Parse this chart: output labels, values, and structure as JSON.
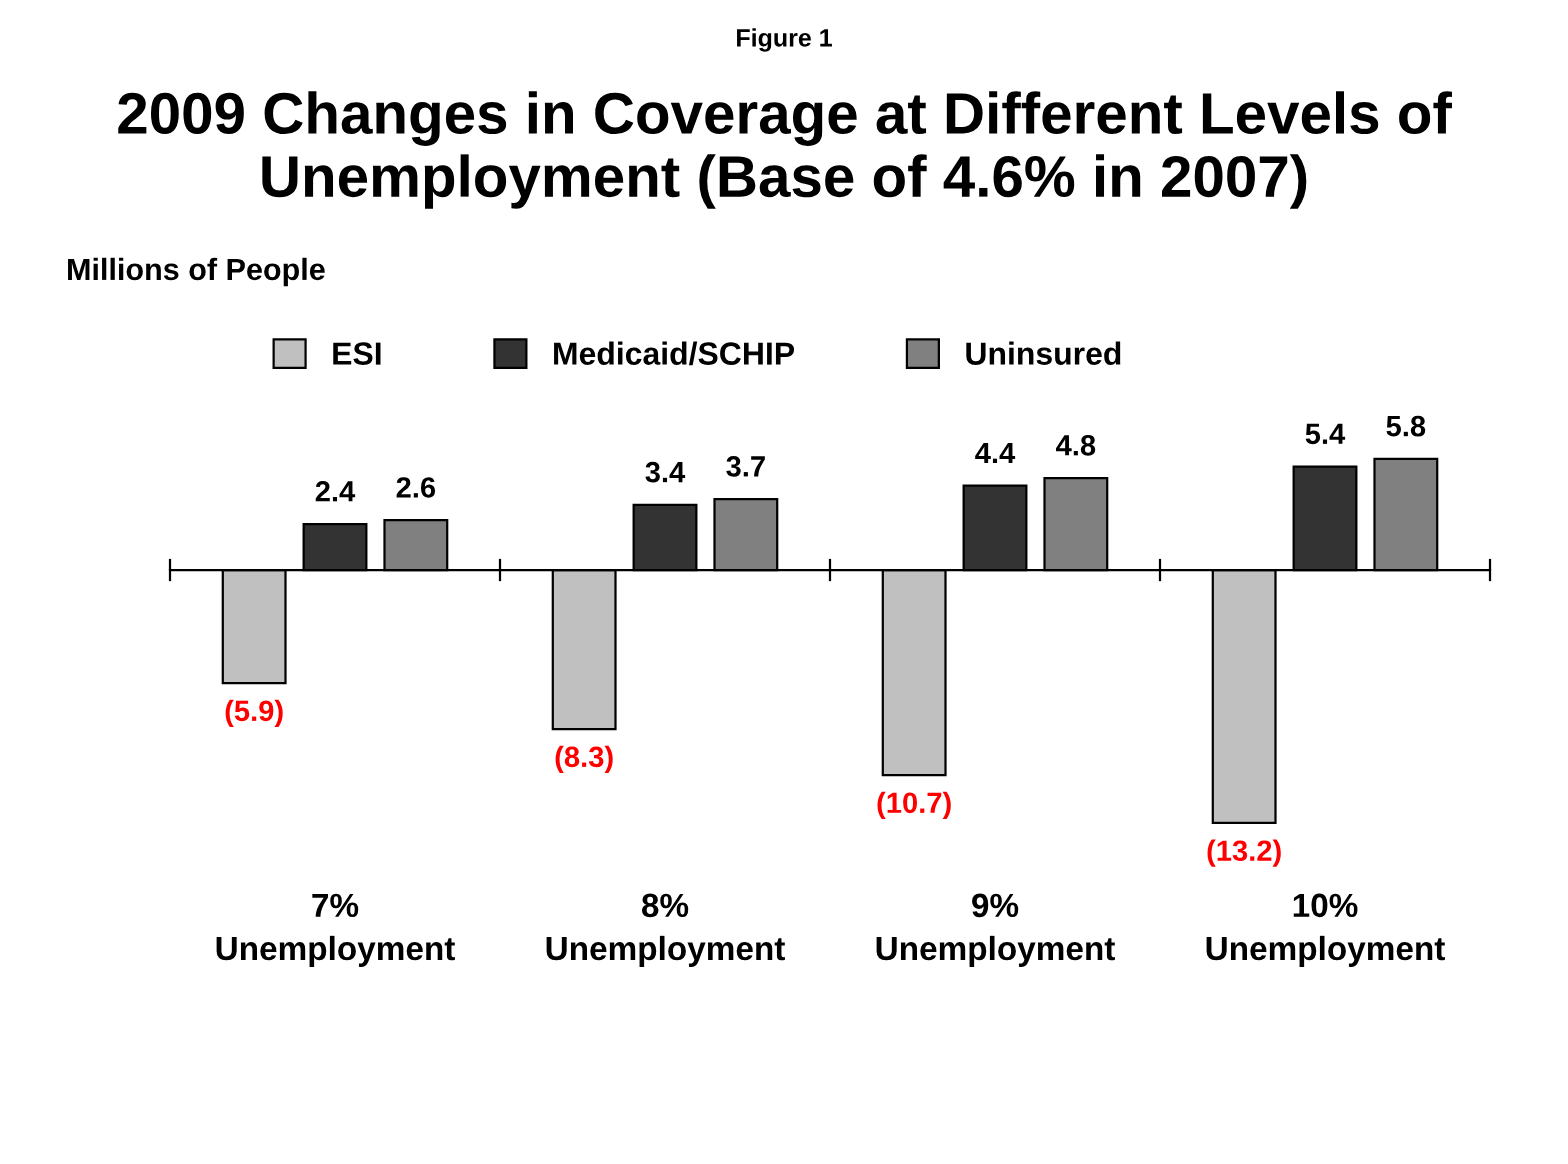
{
  "chart_data": {
    "type": "bar",
    "title": "2009 Changes in Coverage at Different Levels of Unemployment (Base of 4.6% in 2007)",
    "annotations": [
      "Figure 1",
      "Millions of People"
    ],
    "categories": [
      "7%\nUnemployment",
      "8%\nUnemployment",
      "9%\nUnemployment",
      "10%\nUnemployment"
    ],
    "series": [
      {
        "name": "ESI",
        "color": "#c0c0c0",
        "values": [
          -5.9,
          -8.3,
          -10.7,
          -13.2
        ],
        "value_labels": [
          "(5.9)",
          "(8.3)",
          "(10.7)",
          "(13.2)"
        ]
      },
      {
        "name": "Medicaid/SCHIP",
        "color": "#333333",
        "values": [
          2.4,
          3.4,
          4.4,
          5.4
        ],
        "value_labels": [
          "2.4",
          "3.4",
          "4.4",
          "5.4"
        ]
      },
      {
        "name": "Uninsured",
        "color": "#808080",
        "values": [
          2.6,
          3.7,
          4.8,
          5.8
        ],
        "value_labels": [
          "2.6",
          "3.7",
          "4.8",
          "5.8"
        ]
      }
    ],
    "legend": "top",
    "grid": false
  }
}
